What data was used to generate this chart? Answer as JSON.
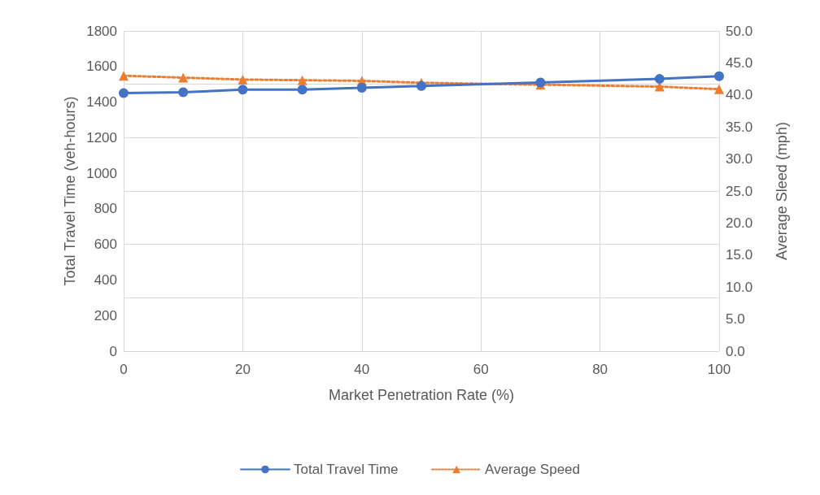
{
  "chart_data": {
    "type": "line",
    "xlabel": "Market Penetration Rate (%)",
    "ylabel": "Total Travel Time (veh-hours)",
    "y2label": "Average Sleed (mph)",
    "x": [
      0,
      10,
      20,
      30,
      40,
      50,
      70,
      90,
      100
    ],
    "series": [
      {
        "name": "Total Travel Time",
        "color": "#4472c4",
        "values": [
          1450,
          1455,
          1470,
          1470,
          1480,
          1490,
          1510,
          1530,
          1545
        ],
        "marker": "circle",
        "line_style": "solid"
      },
      {
        "name": "Average Speed",
        "color": "#ed7d31",
        "axis": "y2",
        "values": [
          43.0,
          42.7,
          42.4,
          42.3,
          42.2,
          41.9,
          41.6,
          41.3,
          40.9
        ],
        "marker": "triangle",
        "line_style": "dotted"
      }
    ],
    "xlim": [
      0,
      100
    ],
    "xticks": [
      0,
      20,
      40,
      60,
      80,
      100
    ],
    "ylim": [
      0,
      1800
    ],
    "yticks": [
      0,
      200,
      400,
      600,
      800,
      1000,
      1200,
      1400,
      1600,
      1800
    ],
    "y2lim": [
      0,
      50
    ],
    "y2ticks": [
      {
        "value": 0,
        "label": "0.0"
      },
      {
        "value": 5,
        "label": "5.0"
      },
      {
        "value": 10,
        "label": "10.0"
      },
      {
        "value": 15,
        "label": "15.0"
      },
      {
        "value": 20,
        "label": "20.0"
      },
      {
        "value": 25,
        "label": "25.0"
      },
      {
        "value": 30,
        "label": "30.0"
      },
      {
        "value": 35,
        "label": "35.0"
      },
      {
        "value": 40,
        "label": "40.0"
      },
      {
        "value": 45,
        "label": "45.0"
      },
      {
        "value": 50,
        "label": "50.0"
      }
    ],
    "grid": true,
    "legend": "bottom"
  }
}
